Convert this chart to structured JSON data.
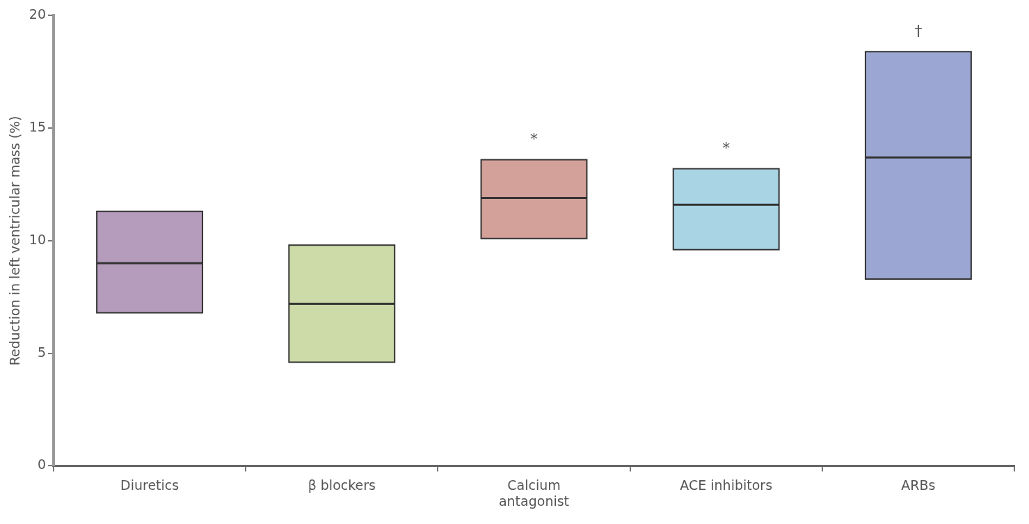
{
  "chart_data": {
    "type": "box",
    "ylabel": "Reduction in left ventricular mass (%)",
    "categories": [
      "Diuretics",
      "β blockers",
      "Calcium antagonist",
      "ACE inhibitors",
      "ARBs"
    ],
    "boxes": [
      {
        "low": 6.8,
        "q1": 6.8,
        "median": 9.0,
        "q3": 11.3,
        "high": 11.3
      },
      {
        "low": 4.6,
        "q1": 4.6,
        "median": 7.2,
        "q3": 9.8,
        "high": 9.8
      },
      {
        "low": 10.1,
        "q1": 10.1,
        "median": 11.9,
        "q3": 13.6,
        "high": 13.6
      },
      {
        "low": 9.6,
        "q1": 9.6,
        "median": 11.6,
        "q3": 13.2,
        "high": 13.2
      },
      {
        "low": 8.3,
        "q1": 8.3,
        "median": 13.7,
        "q3": 18.4,
        "high": 18.4
      }
    ],
    "colors": [
      "#b59cbd",
      "#cddba8",
      "#d4a09a",
      "#a8d4e4",
      "#9ba6d2"
    ],
    "ylim": [
      0,
      20
    ],
    "yticks": [
      0,
      5,
      10,
      15,
      20
    ],
    "grid": false,
    "legend": false,
    "annotations": [
      {
        "text": "*",
        "x": "Calcium antagonist",
        "y": 13.6
      },
      {
        "text": "*",
        "x": "ACE inhibitors",
        "y": 13.2
      },
      {
        "text": "†",
        "x": "ARBs",
        "y": 18.4
      }
    ]
  }
}
